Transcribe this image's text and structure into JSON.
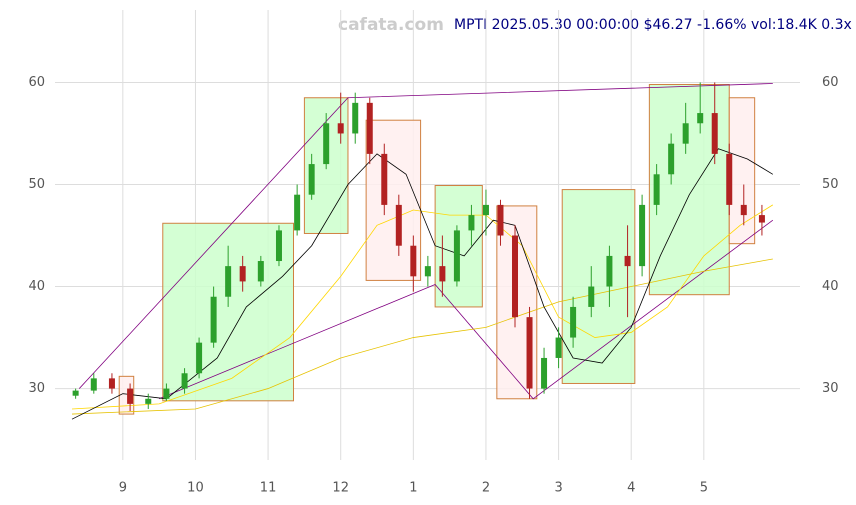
{
  "chart_data": {
    "type": "candlestick",
    "watermark": "cafata.com",
    "title": "MPTI 2025.05.30 00:00:00 $46.27 -1.66% vol:18.4K 0.3x",
    "xlim": [
      8.3,
      17.98
    ],
    "ylim": [
      23,
      67.1
    ],
    "xticks": [
      {
        "value": 9,
        "label": "9"
      },
      {
        "value": 10,
        "label": "10"
      },
      {
        "value": 11,
        "label": "11"
      },
      {
        "value": 12,
        "label": "12"
      },
      {
        "value": 13,
        "label": "1"
      },
      {
        "value": 14,
        "label": "2"
      },
      {
        "value": 15,
        "label": "3"
      },
      {
        "value": 16,
        "label": "4"
      },
      {
        "value": 17,
        "label": "5"
      }
    ],
    "yticks": [
      30,
      40,
      50,
      60
    ],
    "grid": true,
    "up_color": "#2ca02c",
    "down_color": "#b22222",
    "x": [
      8.35,
      8.6,
      8.85,
      9.1,
      9.35,
      9.6,
      9.85,
      10.05,
      10.25,
      10.45,
      10.65,
      10.9,
      11.15,
      11.4,
      11.6,
      11.8,
      12.0,
      12.2,
      12.4,
      12.6,
      12.8,
      13.0,
      13.2,
      13.4,
      13.6,
      13.8,
      14.0,
      14.2,
      14.4,
      14.6,
      14.8,
      15.0,
      15.2,
      15.45,
      15.7,
      15.95,
      16.15,
      16.35,
      16.55,
      16.75,
      16.95,
      17.15,
      17.35,
      17.55,
      17.8
    ],
    "open": [
      29.3,
      29.8,
      31,
      30,
      28.5,
      29,
      30,
      31.5,
      34.5,
      39,
      42,
      40.5,
      42.5,
      45.5,
      49,
      52,
      56,
      55,
      58,
      53,
      48,
      44,
      41,
      42,
      40.5,
      45.5,
      47,
      48,
      45,
      37,
      30,
      33,
      35,
      38,
      40,
      43,
      42,
      48,
      51,
      54,
      56,
      57,
      53,
      48,
      47
    ],
    "high": [
      30,
      31.5,
      31.5,
      30.5,
      29.5,
      30.5,
      32,
      35,
      40,
      44,
      43,
      43,
      46,
      50,
      53,
      57,
      59,
      59,
      58.5,
      54,
      49,
      45,
      43,
      45,
      46,
      48,
      49.5,
      48.5,
      46,
      38,
      34,
      36,
      39,
      42,
      44,
      46,
      49,
      52,
      55,
      58,
      60,
      60,
      54,
      50,
      48
    ],
    "low": [
      29,
      29.5,
      29.5,
      27.8,
      28,
      28.8,
      29.5,
      31,
      34,
      38,
      39.5,
      40,
      42,
      45,
      48.5,
      51.5,
      54,
      54,
      52,
      47,
      43,
      39.5,
      40,
      39,
      40,
      44,
      45,
      44,
      36,
      29,
      29.5,
      32,
      34,
      37,
      38,
      37,
      41,
      47,
      50,
      53,
      55,
      52,
      47,
      46,
      45
    ],
    "close": [
      29.8,
      31,
      30,
      28.5,
      29,
      30,
      31.5,
      34.5,
      39,
      42,
      40.5,
      42.5,
      45.5,
      49,
      52,
      56,
      55,
      58,
      53,
      48,
      44,
      41,
      42,
      40.5,
      45.5,
      47,
      48,
      45,
      37,
      30,
      33,
      35,
      38,
      40,
      43,
      42,
      48,
      51,
      54,
      56,
      57,
      53,
      48,
      47,
      46.27
    ],
    "boxes": [
      {
        "color": "#ccffcc",
        "x": [
          9.55,
          11.35
        ],
        "y": [
          28.8,
          46.2
        ]
      },
      {
        "color": "#ffeeee",
        "x": [
          8.95,
          9.15
        ],
        "y": [
          27.5,
          31.2
        ]
      },
      {
        "color": "#ccffcc",
        "x": [
          11.5,
          12.1
        ],
        "y": [
          45.2,
          58.5
        ]
      },
      {
        "color": "#ffeeee",
        "x": [
          12.35,
          13.1
        ],
        "y": [
          40.6,
          56.3
        ]
      },
      {
        "color": "#ccffcc",
        "x": [
          13.3,
          13.95
        ],
        "y": [
          38,
          49.9
        ]
      },
      {
        "color": "#ffeeee",
        "x": [
          14.15,
          14.7
        ],
        "y": [
          29,
          47.9
        ]
      },
      {
        "color": "#ccffcc",
        "x": [
          15.05,
          16.05
        ],
        "y": [
          30.5,
          49.5
        ]
      },
      {
        "color": "#ccffcc",
        "x": [
          16.25,
          17.35
        ],
        "y": [
          39.2,
          59.8
        ]
      },
      {
        "color": "#ffeeee",
        "x": [
          17.35,
          17.7
        ],
        "y": [
          44.2,
          58.5
        ]
      }
    ],
    "lines": [
      {
        "color": "#800080",
        "x": [
          8.4,
          12.1,
          17.95
        ],
        "values": [
          30,
          58.5,
          59.9
        ]
      },
      {
        "color": "#800080",
        "x": [
          9.5,
          13.3,
          14.65,
          17.95
        ],
        "values": [
          29,
          40.2,
          29,
          46.5
        ]
      },
      {
        "color": "#ffd700",
        "x": [
          8.3,
          9.5,
          10.5,
          11.3,
          12.0,
          12.5,
          13,
          13.5,
          14,
          14.5,
          15,
          15.5,
          16,
          16.5,
          17,
          17.5,
          17.95
        ],
        "values": [
          28,
          28.5,
          31,
          35,
          41,
          46,
          47.5,
          47,
          47,
          44,
          37,
          35,
          35.5,
          38,
          43,
          46,
          48
        ]
      },
      {
        "color": "#e6c200",
        "x": [
          8.3,
          10,
          11,
          12,
          13,
          14,
          15,
          16,
          17,
          17.95
        ],
        "values": [
          27.5,
          28,
          30,
          33,
          35,
          36,
          38.5,
          40,
          41.5,
          42.7
        ]
      },
      {
        "color": "#000000",
        "x": [
          8.3,
          9,
          9.6,
          10.3,
          10.7,
          11.2,
          11.6,
          12.1,
          12.5,
          12.9,
          13.3,
          13.7,
          14.1,
          14.4,
          14.8,
          15.2,
          15.6,
          16,
          16.4,
          16.8,
          17.2,
          17.6,
          17.95
        ],
        "values": [
          27,
          29.5,
          29,
          33,
          38,
          41,
          44,
          50,
          53,
          51,
          44,
          43,
          46.5,
          46,
          38,
          33,
          32.5,
          36,
          43,
          49,
          53.5,
          52.5,
          51
        ]
      }
    ]
  }
}
